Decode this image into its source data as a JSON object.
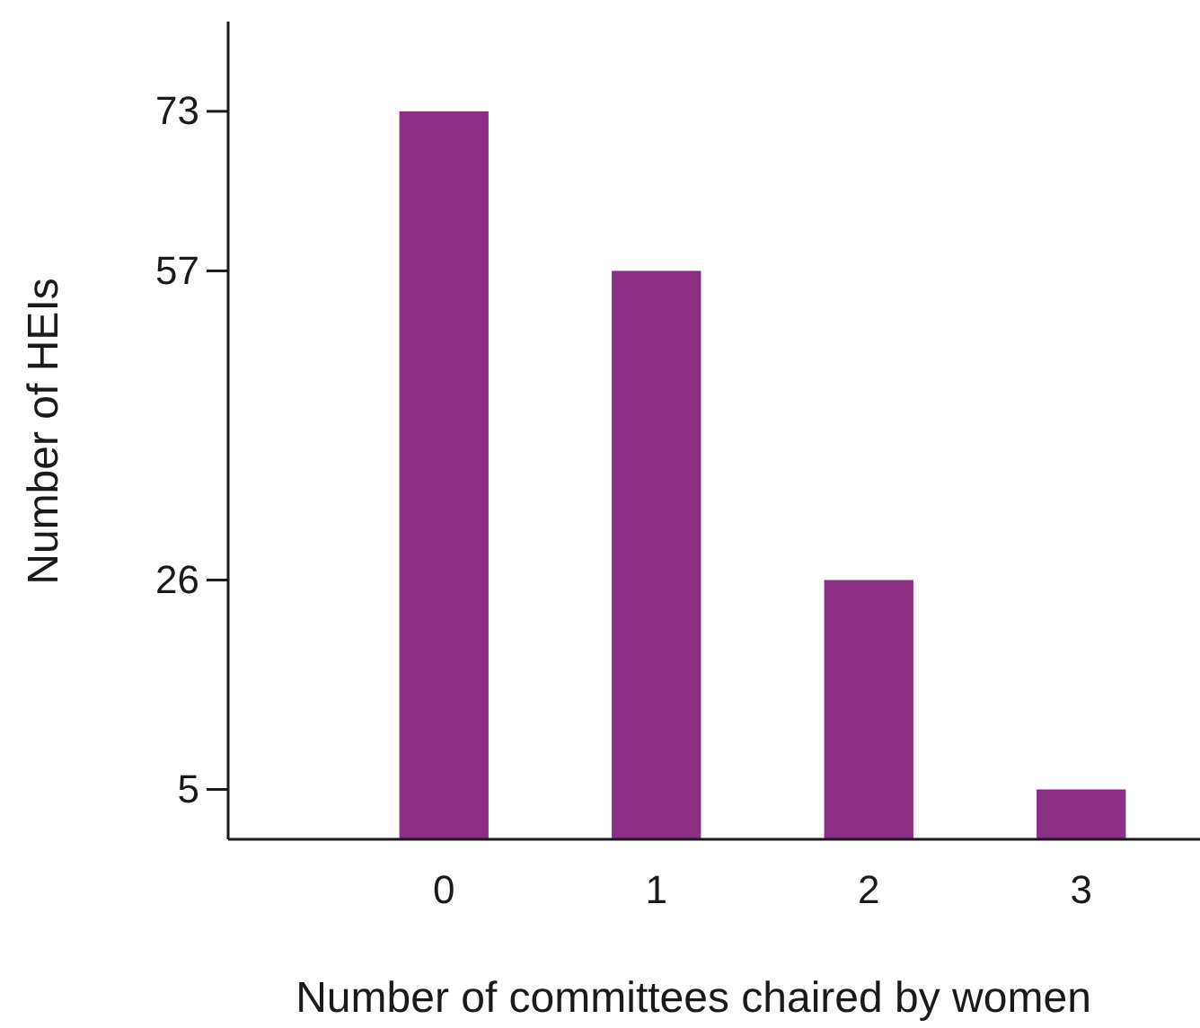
{
  "chart_data": {
    "type": "bar",
    "xlabel": "Number of committees chaired by women",
    "ylabel": "Number of HEIs",
    "categories": [
      "0",
      "1",
      "2",
      "3"
    ],
    "values": [
      73,
      57,
      26,
      5
    ],
    "color": "#8b2f85",
    "ylim": [
      0,
      82
    ],
    "yticks": [
      5,
      26,
      57,
      73
    ],
    "grid": false
  }
}
